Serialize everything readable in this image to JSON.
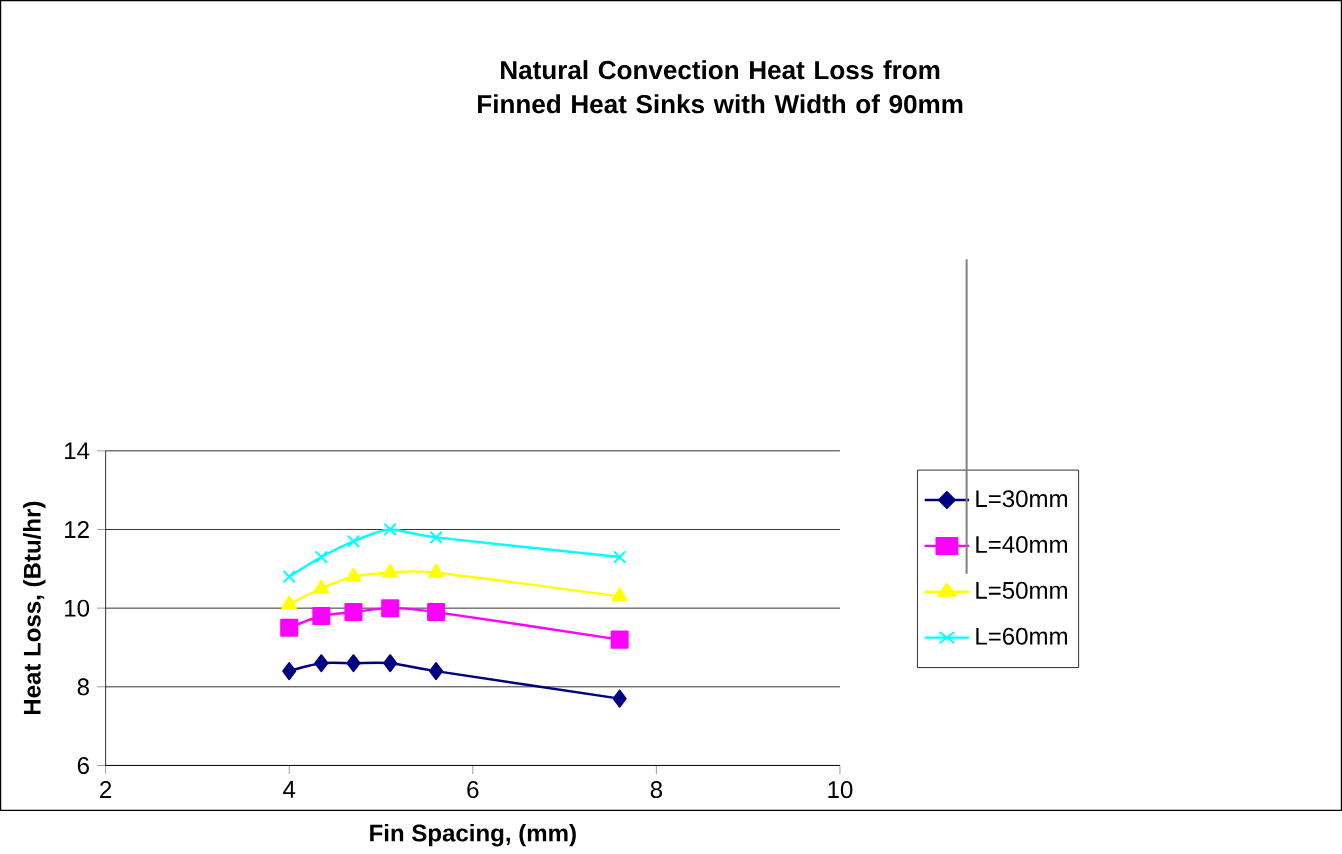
{
  "chart_data": {
    "type": "line",
    "title": "Natural Convection Heat Loss from Finned Heat Sinks with Width of 90mm",
    "xlabel": "Fin Spacing, (mm)",
    "ylabel": "Heat Loss, (Btu/hr)",
    "x": [
      4,
      4.35,
      4.7,
      5.1,
      5.6,
      7.6
    ],
    "series": [
      {
        "name": "L=30mm",
        "color": "#000080",
        "marker": "diamond",
        "values": [
          8.4,
          8.6,
          8.6,
          8.6,
          8.4,
          7.7
        ]
      },
      {
        "name": "L=40mm",
        "color": "#ff00ff",
        "marker": "square",
        "values": [
          9.5,
          9.8,
          9.9,
          10.0,
          9.9,
          9.2
        ]
      },
      {
        "name": "L=50mm",
        "color": "#ffff00",
        "marker": "triangle",
        "values": [
          10.1,
          10.5,
          10.8,
          10.9,
          10.9,
          10.3
        ]
      },
      {
        "name": "L=60mm",
        "color": "#00ffff",
        "marker": "cross",
        "values": [
          10.8,
          11.3,
          11.7,
          12.0,
          11.8,
          11.3
        ]
      }
    ],
    "xlim": [
      2,
      10
    ],
    "xticks": [
      2,
      4,
      6,
      8,
      10
    ],
    "ylim": [
      6,
      14
    ],
    "yticks": [
      6,
      8,
      10,
      12,
      14
    ],
    "grid": "y",
    "legend": "right",
    "line_style": "solid"
  }
}
